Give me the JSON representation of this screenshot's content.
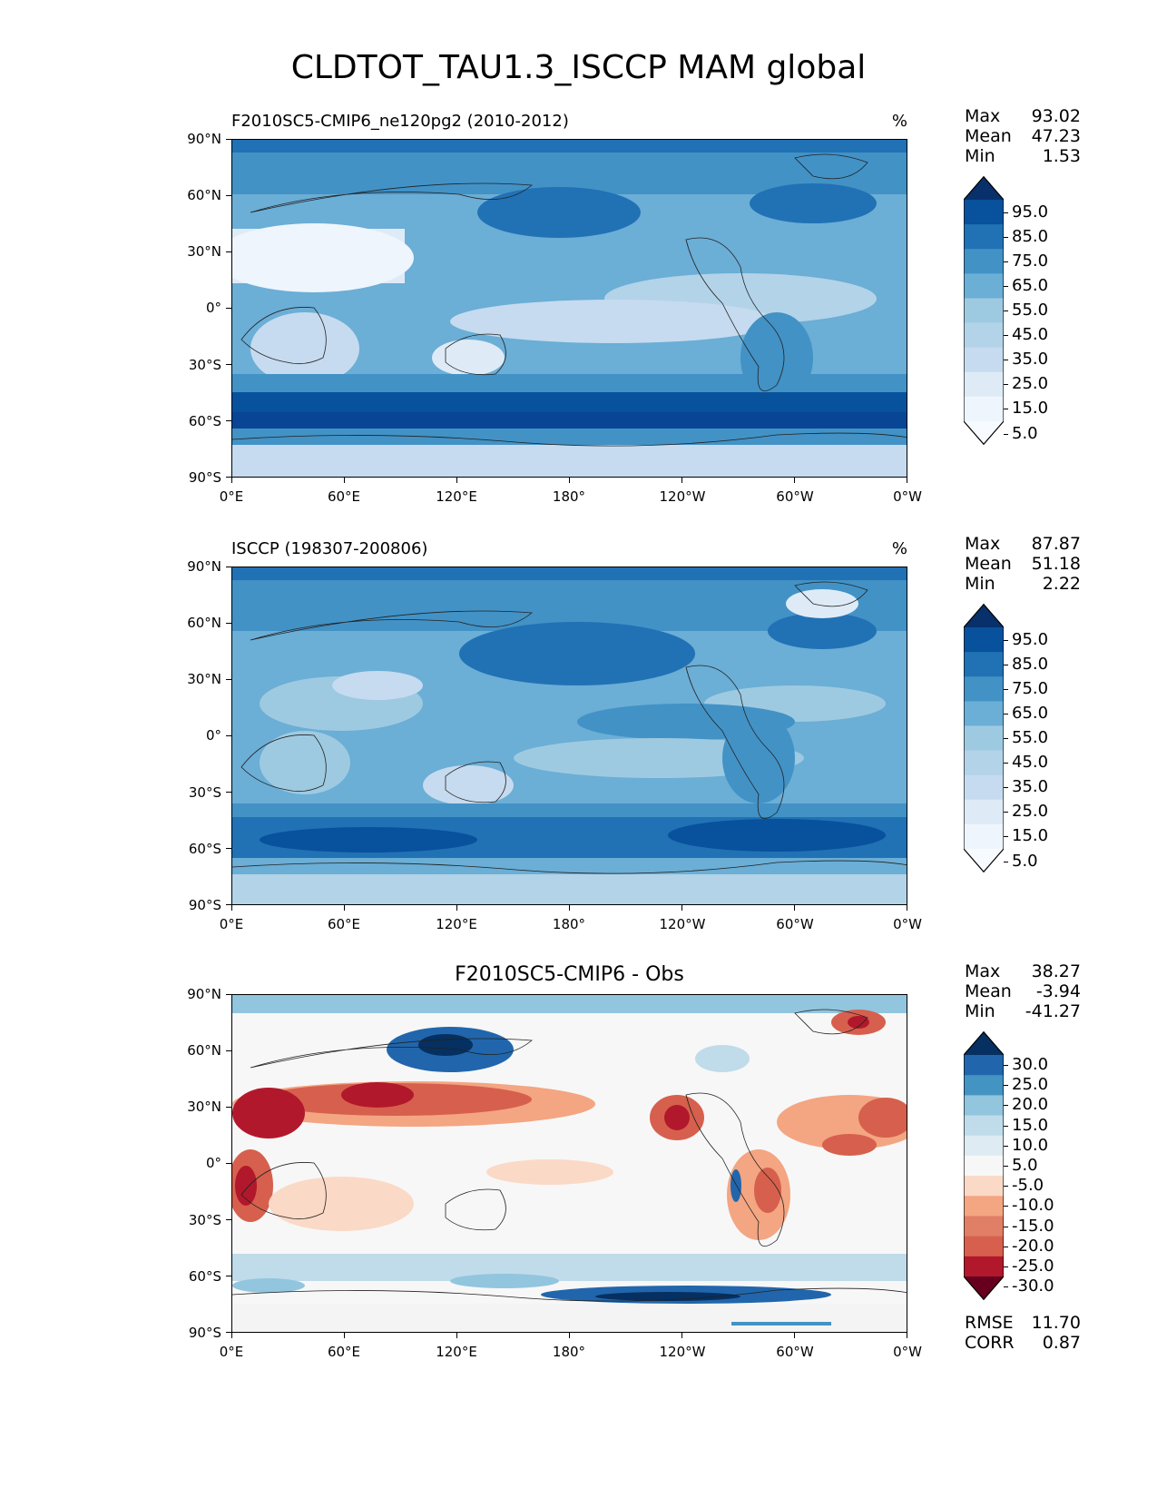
{
  "figure_title": "CLDTOT_TAU1.3_ISCCP MAM global",
  "x_ticks": [
    "0°E",
    "60°E",
    "120°E",
    "180°",
    "120°W",
    "60°W",
    "0°W"
  ],
  "y_ticks": [
    "90°N",
    "60°N",
    "30°N",
    "0°",
    "30°S",
    "60°S",
    "90°S"
  ],
  "panels": [
    {
      "id": "model",
      "title": "F2010SC5-CMIP6_ne120pg2 (2010-2012)",
      "units": "%",
      "stats": {
        "max_label": "Max",
        "max": "93.02",
        "mean_label": "Mean",
        "mean": "47.23",
        "min_label": "Min",
        "min": "1.53"
      },
      "colorbar_levels": [
        "95.0",
        "85.0",
        "75.0",
        "65.0",
        "55.0",
        "45.0",
        "35.0",
        "25.0",
        "15.0",
        "5.0"
      ],
      "colorbar_colors": [
        "#08306b",
        "#08519c",
        "#2171b5",
        "#4292c6",
        "#6baed6",
        "#9ecae1",
        "#b3d3e8",
        "#c6dbef",
        "#deebf7",
        "#eef5fc",
        "#f7fbff"
      ]
    },
    {
      "id": "obs",
      "title": "ISCCP (198307-200806)",
      "units": "%",
      "stats": {
        "max_label": "Max",
        "max": "87.87",
        "mean_label": "Mean",
        "mean": "51.18",
        "min_label": "Min",
        "min": "2.22"
      },
      "colorbar_levels": [
        "95.0",
        "85.0",
        "75.0",
        "65.0",
        "55.0",
        "45.0",
        "35.0",
        "25.0",
        "15.0",
        "5.0"
      ],
      "colorbar_colors": [
        "#08306b",
        "#08519c",
        "#2171b5",
        "#4292c6",
        "#6baed6",
        "#9ecae1",
        "#b3d3e8",
        "#c6dbef",
        "#deebf7",
        "#eef5fc",
        "#f7fbff"
      ]
    },
    {
      "id": "diff",
      "title": "F2010SC5-CMIP6 - Obs",
      "units": "",
      "stats": {
        "max_label": "Max",
        "max": "38.27",
        "mean_label": "Mean",
        "mean": "-3.94",
        "min_label": "Min",
        "min": "-41.27"
      },
      "colorbar_levels": [
        "30.0",
        "25.0",
        "20.0",
        "15.0",
        "10.0",
        "5.0",
        "-5.0",
        "-10.0",
        "-15.0",
        "-20.0",
        "-25.0",
        "-30.0"
      ],
      "colorbar_colors": [
        "#053061",
        "#2166ac",
        "#4393c3",
        "#92c5de",
        "#c0dbea",
        "#deebf2",
        "#f7f7f7",
        "#fbd9c7",
        "#f4a582",
        "#e07f65",
        "#d6604d",
        "#b2182b",
        "#67001f"
      ],
      "metrics": {
        "rmse_label": "RMSE",
        "rmse": "11.70",
        "corr_label": "CORR",
        "corr": "0.87"
      }
    }
  ]
}
